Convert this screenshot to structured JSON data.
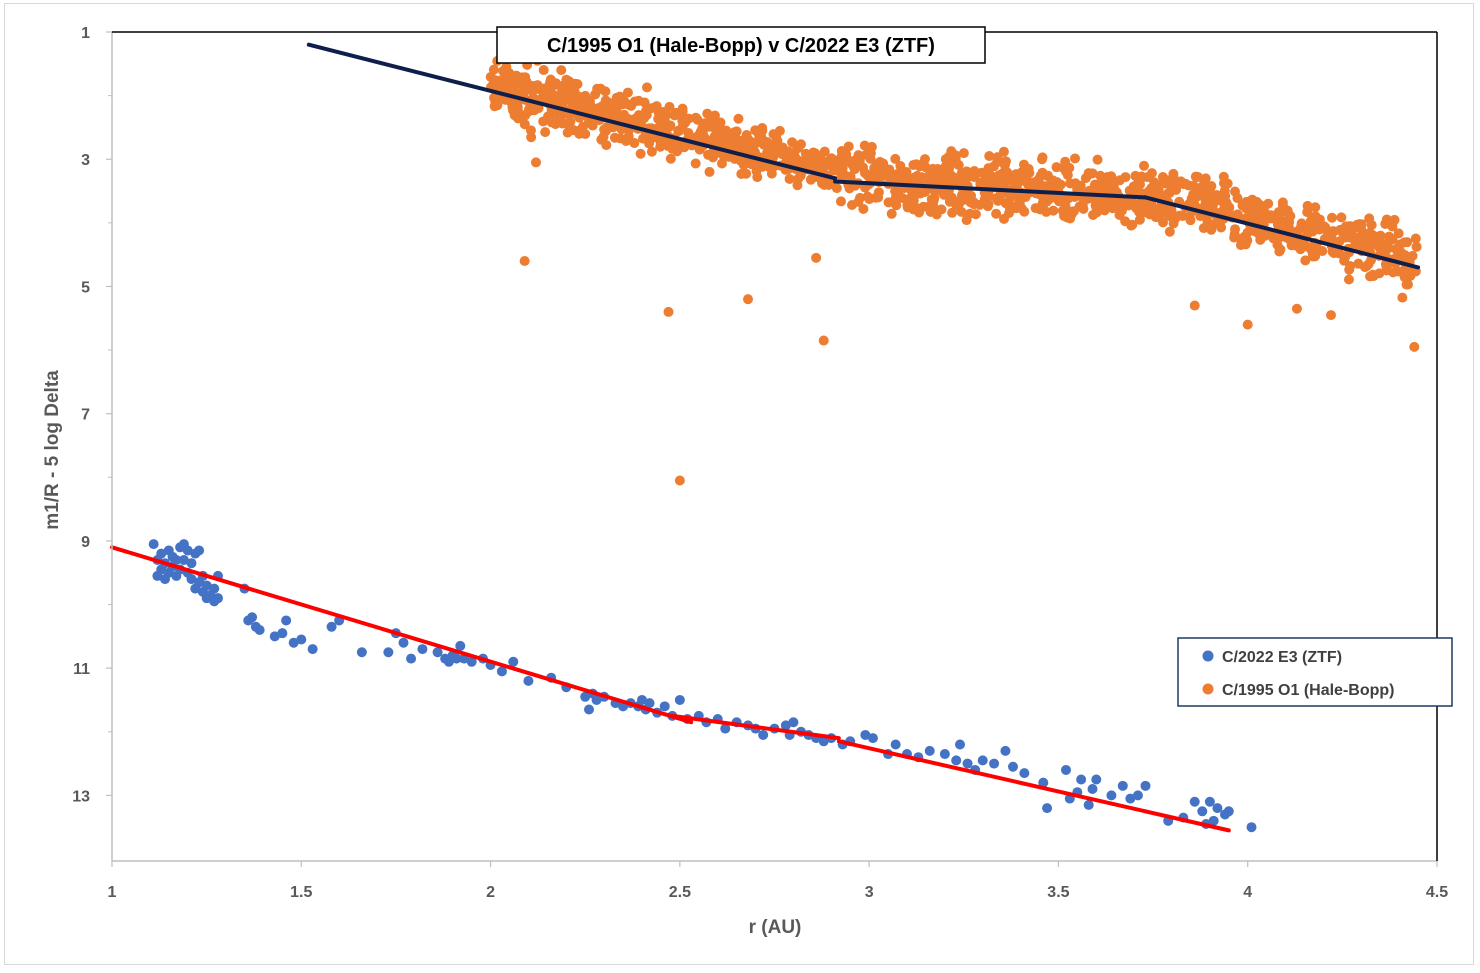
{
  "chart_data": {
    "type": "scatter",
    "title": "C/1995 O1 (Hale-Bopp) v C/2022 E3 (ZTF)",
    "xlabel": "r (AU)",
    "ylabel": "m1/R - 5 log Delta",
    "xlim": [
      1,
      4.5
    ],
    "ylim": [
      1,
      14
    ],
    "y_reversed": true,
    "x_ticks": [
      "1",
      "1.5",
      "2",
      "2.5",
      "3",
      "3.5",
      "4",
      "4.5"
    ],
    "x_tick_values": [
      1,
      1.5,
      2,
      2.5,
      3,
      3.5,
      4,
      4.5
    ],
    "y_ticks": [
      "1",
      "3",
      "5",
      "7",
      "9",
      "11",
      "13"
    ],
    "y_tick_values": [
      1,
      3,
      5,
      7,
      9,
      11,
      13
    ],
    "legend_position": "right",
    "series": [
      {
        "name": "C/2022 E3 (ZTF)",
        "color": "#4472c4",
        "marker": "circle",
        "approx_range": {
          "r_min": 1.11,
          "r_max": 4.02
        },
        "points": [
          [
            1.11,
            9.05
          ],
          [
            1.12,
            9.3
          ],
          [
            1.12,
            9.55
          ],
          [
            1.13,
            9.45
          ],
          [
            1.13,
            9.2
          ],
          [
            1.14,
            9.35
          ],
          [
            1.14,
            9.6
          ],
          [
            1.15,
            9.15
          ],
          [
            1.15,
            9.5
          ],
          [
            1.16,
            9.25
          ],
          [
            1.16,
            9.4
          ],
          [
            1.17,
            9.55
          ],
          [
            1.17,
            9.3
          ],
          [
            1.18,
            9.1
          ],
          [
            1.18,
            9.45
          ],
          [
            1.19,
            9.3
          ],
          [
            1.19,
            9.05
          ],
          [
            1.2,
            9.5
          ],
          [
            1.2,
            9.15
          ],
          [
            1.21,
            9.35
          ],
          [
            1.21,
            9.6
          ],
          [
            1.22,
            9.2
          ],
          [
            1.22,
            9.75
          ],
          [
            1.23,
            9.65
          ],
          [
            1.23,
            9.15
          ],
          [
            1.24,
            9.8
          ],
          [
            1.24,
            9.55
          ],
          [
            1.25,
            9.9
          ],
          [
            1.25,
            9.7
          ],
          [
            1.26,
            9.85
          ],
          [
            1.27,
            9.75
          ],
          [
            1.27,
            9.95
          ],
          [
            1.28,
            9.55
          ],
          [
            1.28,
            9.9
          ],
          [
            1.35,
            9.75
          ],
          [
            1.36,
            10.25
          ],
          [
            1.37,
            10.2
          ],
          [
            1.38,
            10.35
          ],
          [
            1.39,
            10.4
          ],
          [
            1.43,
            10.5
          ],
          [
            1.45,
            10.45
          ],
          [
            1.46,
            10.25
          ],
          [
            1.48,
            10.6
          ],
          [
            1.5,
            10.55
          ],
          [
            1.53,
            10.7
          ],
          [
            1.58,
            10.35
          ],
          [
            1.6,
            10.25
          ],
          [
            1.66,
            10.75
          ],
          [
            1.73,
            10.75
          ],
          [
            1.75,
            10.45
          ],
          [
            1.77,
            10.6
          ],
          [
            1.79,
            10.85
          ],
          [
            1.82,
            10.7
          ],
          [
            1.86,
            10.75
          ],
          [
            1.88,
            10.85
          ],
          [
            1.89,
            10.9
          ],
          [
            1.9,
            10.8
          ],
          [
            1.91,
            10.85
          ],
          [
            1.92,
            10.65
          ],
          [
            1.93,
            10.85
          ],
          [
            1.95,
            10.9
          ],
          [
            1.98,
            10.85
          ],
          [
            2.0,
            10.95
          ],
          [
            2.03,
            11.05
          ],
          [
            2.06,
            10.9
          ],
          [
            2.1,
            11.2
          ],
          [
            2.16,
            11.15
          ],
          [
            2.2,
            11.3
          ],
          [
            2.25,
            11.45
          ],
          [
            2.26,
            11.65
          ],
          [
            2.27,
            11.4
          ],
          [
            2.28,
            11.5
          ],
          [
            2.3,
            11.45
          ],
          [
            2.33,
            11.55
          ],
          [
            2.35,
            11.6
          ],
          [
            2.37,
            11.55
          ],
          [
            2.39,
            11.6
          ],
          [
            2.4,
            11.5
          ],
          [
            2.41,
            11.65
          ],
          [
            2.42,
            11.55
          ],
          [
            2.44,
            11.7
          ],
          [
            2.46,
            11.6
          ],
          [
            2.48,
            11.75
          ],
          [
            2.5,
            11.5
          ],
          [
            2.52,
            11.8
          ],
          [
            2.55,
            11.75
          ],
          [
            2.57,
            11.85
          ],
          [
            2.6,
            11.8
          ],
          [
            2.62,
            11.95
          ],
          [
            2.65,
            11.85
          ],
          [
            2.68,
            11.9
          ],
          [
            2.7,
            11.95
          ],
          [
            2.72,
            12.05
          ],
          [
            2.75,
            11.95
          ],
          [
            2.78,
            11.9
          ],
          [
            2.79,
            12.05
          ],
          [
            2.8,
            11.85
          ],
          [
            2.82,
            12.0
          ],
          [
            2.84,
            12.05
          ],
          [
            2.86,
            12.1
          ],
          [
            2.88,
            12.15
          ],
          [
            2.9,
            12.1
          ],
          [
            2.93,
            12.2
          ],
          [
            2.95,
            12.15
          ],
          [
            2.99,
            12.05
          ],
          [
            3.01,
            12.1
          ],
          [
            3.05,
            12.35
          ],
          [
            3.07,
            12.2
          ],
          [
            3.1,
            12.35
          ],
          [
            3.13,
            12.4
          ],
          [
            3.16,
            12.3
          ],
          [
            3.2,
            12.35
          ],
          [
            3.23,
            12.45
          ],
          [
            3.24,
            12.2
          ],
          [
            3.26,
            12.5
          ],
          [
            3.28,
            12.6
          ],
          [
            3.3,
            12.45
          ],
          [
            3.33,
            12.5
          ],
          [
            3.36,
            12.3
          ],
          [
            3.38,
            12.55
          ],
          [
            3.41,
            12.65
          ],
          [
            3.46,
            12.8
          ],
          [
            3.47,
            13.2
          ],
          [
            3.52,
            12.6
          ],
          [
            3.53,
            13.05
          ],
          [
            3.55,
            12.95
          ],
          [
            3.56,
            12.75
          ],
          [
            3.58,
            13.15
          ],
          [
            3.59,
            12.9
          ],
          [
            3.6,
            12.75
          ],
          [
            3.64,
            13.0
          ],
          [
            3.67,
            12.85
          ],
          [
            3.69,
            13.05
          ],
          [
            3.71,
            13.0
          ],
          [
            3.73,
            12.85
          ],
          [
            3.79,
            13.4
          ],
          [
            3.83,
            13.35
          ],
          [
            3.86,
            13.1
          ],
          [
            3.88,
            13.25
          ],
          [
            3.89,
            13.45
          ],
          [
            3.9,
            13.1
          ],
          [
            3.91,
            13.4
          ],
          [
            3.92,
            13.2
          ],
          [
            3.94,
            13.3
          ],
          [
            3.95,
            13.25
          ],
          [
            4.01,
            13.5
          ]
        ],
        "trend_lines": [
          {
            "x": [
              1.0,
              2.53
            ],
            "y": [
              9.1,
              11.85
            ]
          },
          {
            "x": [
              2.48,
              2.92
            ],
            "y": [
              11.75,
              12.1
            ]
          },
          {
            "x": [
              2.92,
              3.95
            ],
            "y": [
              12.15,
              13.55
            ]
          }
        ],
        "trend_color": "#ff0000"
      },
      {
        "name": "C/1995 O1 (Hale-Bopp)",
        "color": "#ed7d31",
        "marker": "circle",
        "approx_range": {
          "r_min": 2.0,
          "r_max": 4.45
        },
        "points": [
          [
            2.09,
            4.6
          ],
          [
            2.12,
            3.05
          ],
          [
            2.47,
            5.4
          ],
          [
            2.5,
            8.05
          ],
          [
            2.68,
            5.2
          ],
          [
            2.86,
            4.55
          ],
          [
            2.88,
            5.85
          ],
          [
            4.44,
            5.95
          ],
          [
            4.22,
            5.45
          ],
          [
            4.13,
            5.35
          ],
          [
            4.0,
            5.6
          ],
          [
            3.86,
            5.3
          ]
        ],
        "band": [
          {
            "x": 2.0,
            "y": 1.9,
            "spread": 0.25
          },
          {
            "x": 2.1,
            "y": 2.0,
            "spread": 0.35
          },
          {
            "x": 2.3,
            "y": 2.3,
            "spread": 0.3
          },
          {
            "x": 2.5,
            "y": 2.55,
            "spread": 0.3
          },
          {
            "x": 2.7,
            "y": 2.9,
            "spread": 0.25
          },
          {
            "x": 2.9,
            "y": 3.2,
            "spread": 0.25
          },
          {
            "x": 3.0,
            "y": 3.35,
            "spread": 0.35
          },
          {
            "x": 3.2,
            "y": 3.4,
            "spread": 0.35
          },
          {
            "x": 3.4,
            "y": 3.45,
            "spread": 0.3
          },
          {
            "x": 3.6,
            "y": 3.55,
            "spread": 0.3
          },
          {
            "x": 3.8,
            "y": 3.6,
            "spread": 0.35
          },
          {
            "x": 4.0,
            "y": 3.9,
            "spread": 0.3
          },
          {
            "x": 4.2,
            "y": 4.25,
            "spread": 0.3
          },
          {
            "x": 4.45,
            "y": 4.6,
            "spread": 0.35
          }
        ],
        "trend_lines": [
          {
            "x": [
              1.52,
              2.91
            ],
            "y": [
              1.2,
              3.3
            ]
          },
          {
            "x": [
              2.91,
              3.73
            ],
            "y": [
              3.35,
              3.6
            ]
          },
          {
            "x": [
              3.73,
              4.45
            ],
            "y": [
              3.6,
              4.7
            ]
          }
        ],
        "trend_color": "#0d1f4a"
      }
    ]
  }
}
